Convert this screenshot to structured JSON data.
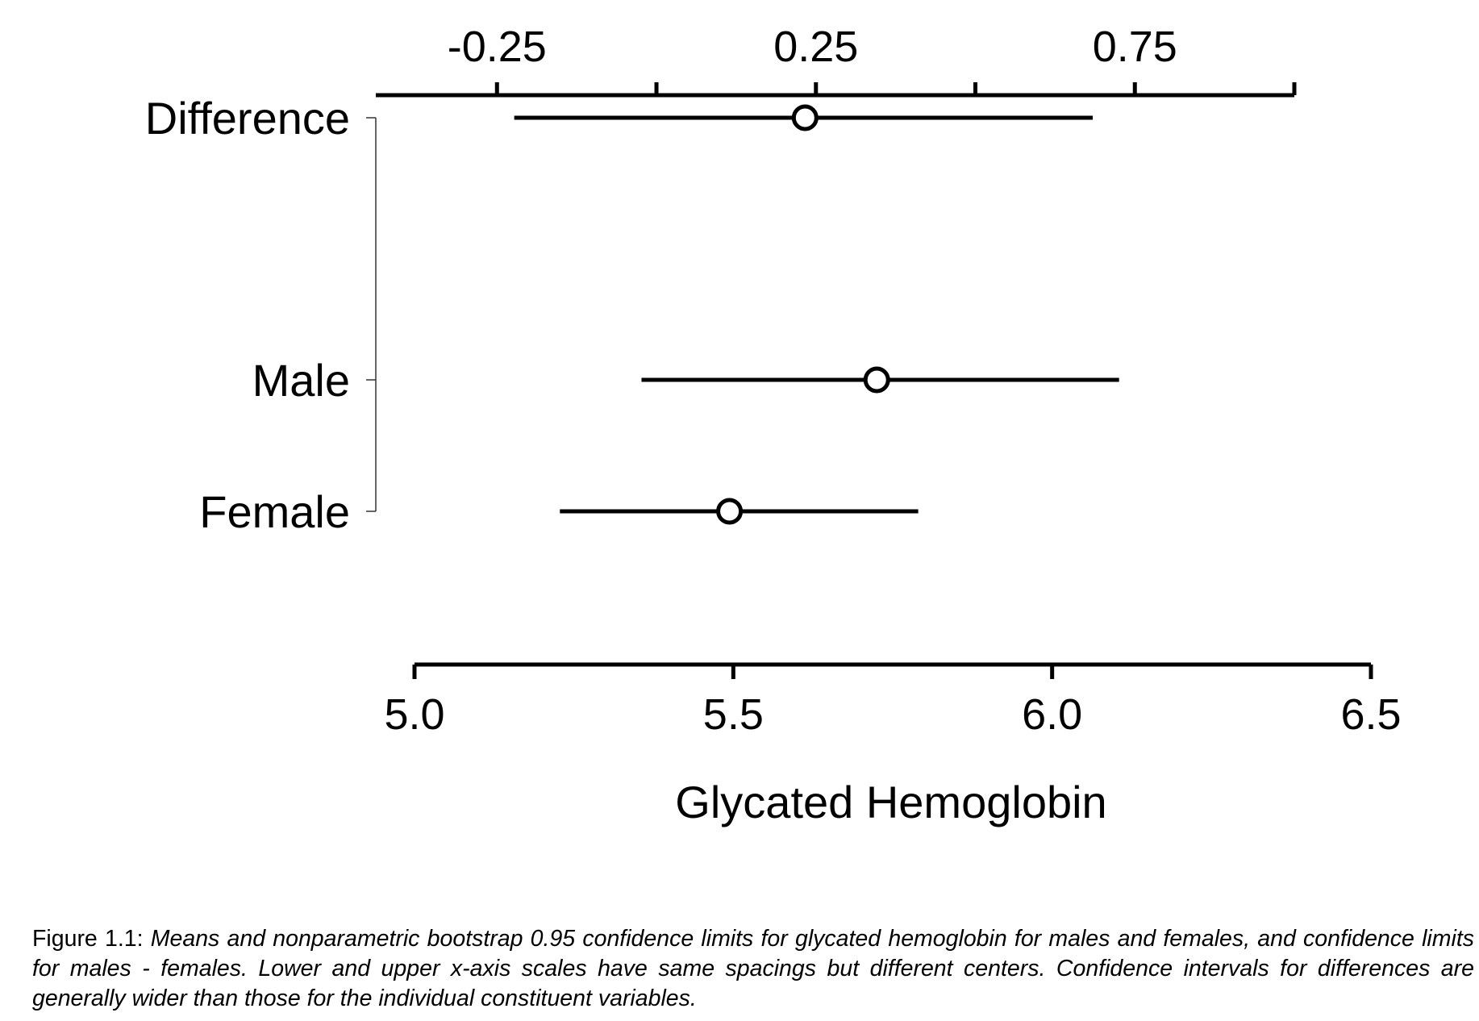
{
  "chart_data": {
    "type": "dot_interval",
    "xlabel": "Glycated Hemoglobin",
    "bottom_axis": {
      "ticks": [
        5.0,
        5.5,
        6.0,
        6.5
      ],
      "tick_labels": [
        "5.0",
        "5.5",
        "6.0",
        "6.5"
      ],
      "range": [
        5.0,
        6.5
      ]
    },
    "top_axis": {
      "ticks": [
        -0.25,
        0.25,
        0.75
      ],
      "tick_labels": [
        "-0.25",
        "0.25",
        "0.75"
      ],
      "minor_ticks": [
        0.0,
        0.5,
        1.0
      ],
      "range": [
        -0.44,
        1.0
      ]
    },
    "rows": [
      {
        "label": "Difference",
        "axis": "top",
        "estimate": 0.233,
        "lower": -0.223,
        "upper": 0.684
      },
      {
        "label": "Male",
        "axis": "bottom",
        "estimate": 5.725,
        "lower": 5.356,
        "upper": 6.105
      },
      {
        "label": "Female",
        "axis": "bottom",
        "estimate": 5.494,
        "lower": 5.228,
        "upper": 5.79
      }
    ]
  },
  "caption": {
    "lead": "Figure 1.1:",
    "text": "Means and nonparametric bootstrap 0.95 confidence limits for glycated hemoglobin for males and females, and confidence limits for males - females.  Lower and upper x-axis scales have same spacings but different centers.  Confidence intervals for differences are generally wider than those for the individual constituent variables."
  }
}
